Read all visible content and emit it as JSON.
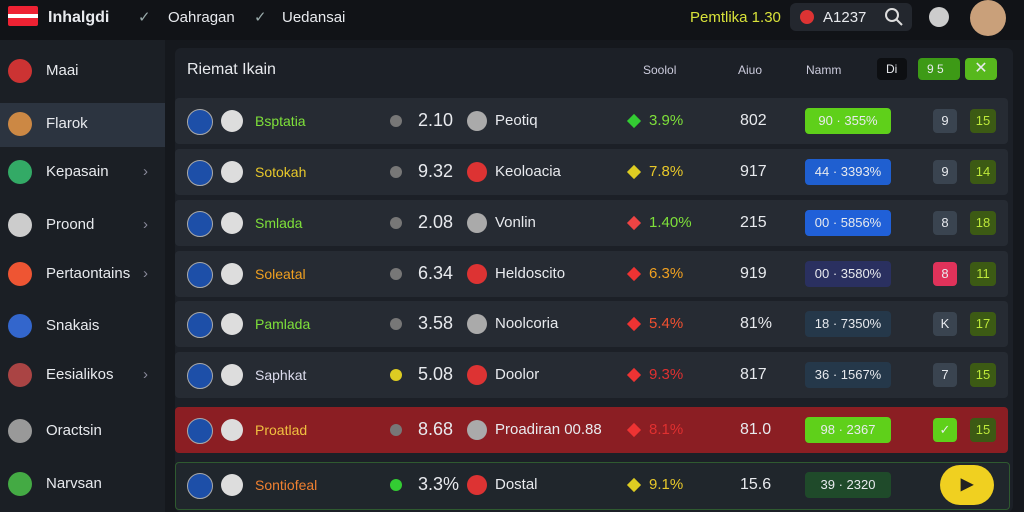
{
  "header": {
    "brand": "Inhalgdi",
    "nav": [
      "Oahragan",
      "Uedansai"
    ],
    "balance": "Pemtlika 1.30",
    "search": "A1237"
  },
  "sidebar": [
    "Maai",
    "Flarok",
    "Kepasain",
    "Proond",
    "Pertaontains",
    "Snakais",
    "Eesialikos",
    "Oractsin",
    "Narvsan"
  ],
  "panel": {
    "title": "Riemat Ikain",
    "columns": [
      "Soolol",
      "Aiuo",
      "Namm"
    ],
    "buttons": [
      "Di",
      "9 5"
    ]
  },
  "rows": [
    {
      "team1": "Bsptatia",
      "score": "2.10",
      "team2": "Peotiq",
      "change": "3.9%",
      "value": "802",
      "badge": "90 · 355%",
      "box1": "9",
      "box2": "15"
    },
    {
      "team1": "Sotokah",
      "score": "9.32",
      "team2": "Keoloacia",
      "change": "7.8%",
      "value": "917",
      "badge": "44 · 3393%",
      "box1": "9",
      "box2": "14"
    },
    {
      "team1": "Smlada",
      "score": "2.08",
      "team2": "Vonlin",
      "change": "1.40%",
      "value": "215",
      "badge": "00 · 5856%",
      "box1": "8",
      "box2": "18"
    },
    {
      "team1": "Soleatal",
      "score": "6.34",
      "team2": "Heldoscito",
      "change": "6.3%",
      "value": "919",
      "badge": "00 · 3580%",
      "box1": "8",
      "box2": "11"
    },
    {
      "team1": "Pamlada",
      "score": "3.58",
      "team2": "Noolcoria",
      "change": "5.4%",
      "value": "81%",
      "badge": "18 · 7350%",
      "box1": "K",
      "box2": "17"
    },
    {
      "team1": "Saphkat",
      "score": "5.08",
      "team2": "Doolor",
      "change": "9.3%",
      "value": "817",
      "badge": "36 · 1567%",
      "box1": "7",
      "box2": "15"
    },
    {
      "team1": "Proatlad",
      "score": "8.68",
      "team2": "Proadiran 00.88",
      "change": "8.1%",
      "value": "81.0",
      "badge": "98 · 2367",
      "box2": "15"
    },
    {
      "team1": "Sontiofeal",
      "score": "3.3%",
      "team2": "Dostal",
      "change": "9.1%",
      "value": "15.6",
      "badge": "39 · 2320"
    }
  ]
}
